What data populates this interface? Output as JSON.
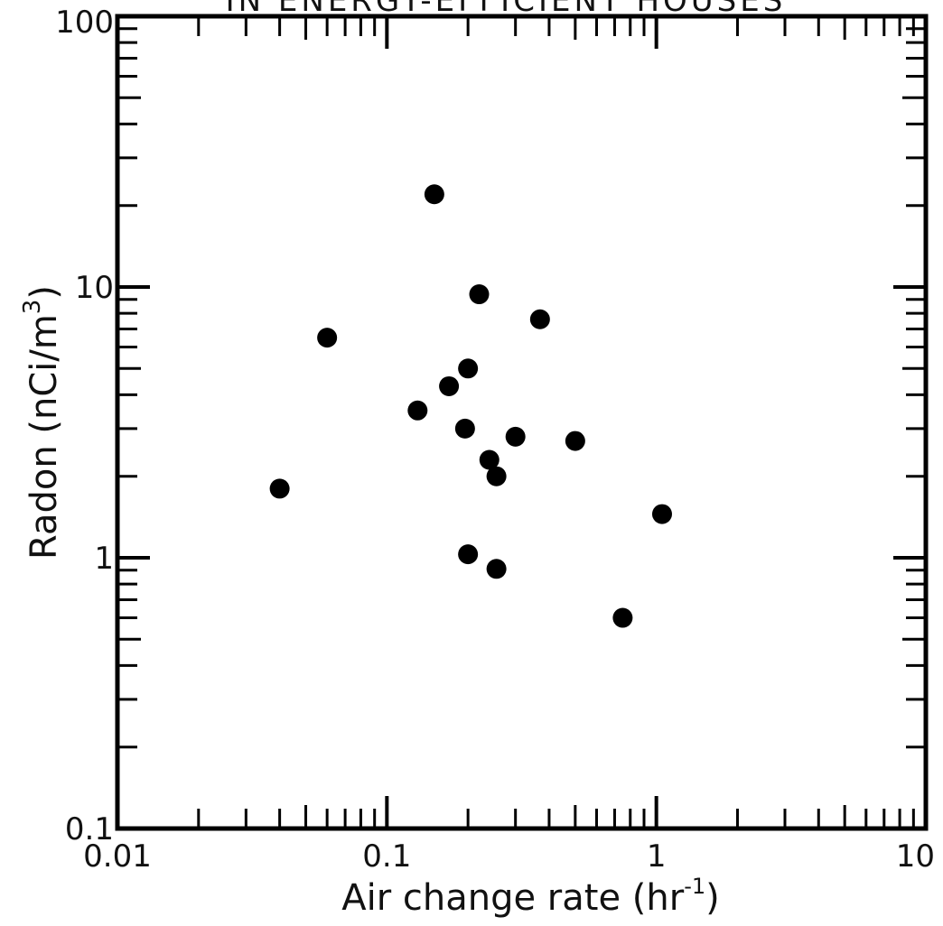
{
  "chart_data": {
    "type": "scatter",
    "title": "IN ENERGY-EFFICIENT HOUSES",
    "xlabel": "Air change rate (hr",
    "xlabel_sup": "-1",
    "xlabel_end": ")",
    "ylabel": "Radon (nCi/m",
    "ylabel_sup": "3",
    "ylabel_end": ")",
    "xscale": "log",
    "yscale": "log",
    "xlim": [
      0.01,
      10
    ],
    "ylim": [
      0.1,
      100
    ],
    "x_tick_labels": [
      "0.01",
      "0.1",
      "1",
      "10"
    ],
    "y_tick_labels": [
      "0.1",
      "1",
      "10",
      "100"
    ],
    "x_ticks": [
      0.01,
      0.1,
      1,
      10
    ],
    "y_ticks": [
      0.1,
      1,
      10,
      100
    ],
    "grid": false,
    "legend": "none",
    "marker_color": "#000000",
    "points": [
      {
        "x": 0.04,
        "y": 1.8
      },
      {
        "x": 0.06,
        "y": 6.5
      },
      {
        "x": 0.13,
        "y": 3.5
      },
      {
        "x": 0.15,
        "y": 22
      },
      {
        "x": 0.17,
        "y": 4.3
      },
      {
        "x": 0.2,
        "y": 5.0
      },
      {
        "x": 0.195,
        "y": 3.0
      },
      {
        "x": 0.2,
        "y": 1.03
      },
      {
        "x": 0.22,
        "y": 9.4
      },
      {
        "x": 0.24,
        "y": 2.3
      },
      {
        "x": 0.255,
        "y": 2.0
      },
      {
        "x": 0.255,
        "y": 0.91
      },
      {
        "x": 0.3,
        "y": 2.8
      },
      {
        "x": 0.37,
        "y": 7.6
      },
      {
        "x": 0.5,
        "y": 2.7
      },
      {
        "x": 0.75,
        "y": 0.6
      },
      {
        "x": 1.05,
        "y": 1.45
      }
    ]
  }
}
